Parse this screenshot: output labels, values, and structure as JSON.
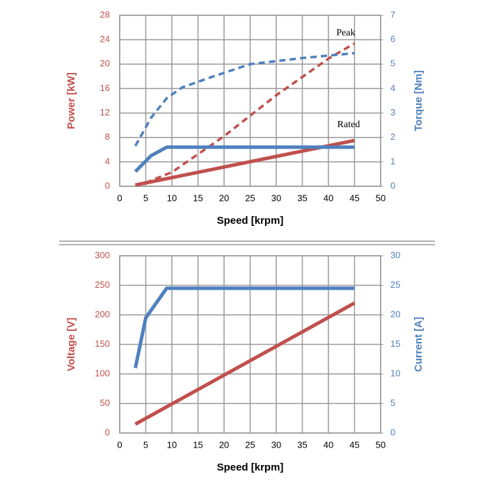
{
  "chart_data": [
    {
      "type": "line",
      "x_label": "Speed [krpm]",
      "y_label": "Power [kW]",
      "y2_label": "Torque [Nm]",
      "xlim": [
        0,
        50
      ],
      "xticks": [
        0,
        5,
        10,
        15,
        20,
        25,
        30,
        35,
        40,
        45,
        50
      ],
      "ylim": [
        0,
        28
      ],
      "yticks": [
        0,
        4,
        8,
        12,
        16,
        20,
        24,
        28
      ],
      "y2lim": [
        0,
        7
      ],
      "y2ticks": [
        0,
        1,
        2,
        3,
        4,
        5,
        6,
        7
      ],
      "grid": true,
      "y_color": "#c0504d",
      "y2_color": "#4f81bd",
      "annotations": [
        "Peak",
        "Rated"
      ],
      "series": [
        {
          "color": "#c0504d",
          "style": "dashed",
          "axis": "y",
          "x": [
            3,
            5,
            10,
            20,
            30,
            40,
            45
          ],
          "values": [
            0.2,
            0.6,
            2.3,
            8.2,
            14.9,
            20.9,
            23.4
          ]
        },
        {
          "color": "#c0504d",
          "style": "solid",
          "axis": "y",
          "x": [
            3,
            45
          ],
          "values": [
            0.2,
            7.5
          ]
        },
        {
          "color": "#4f81bd",
          "style": "dashed",
          "axis": "y2",
          "x": [
            3,
            6,
            9,
            12,
            18,
            25,
            35,
            45
          ],
          "values": [
            1.65,
            2.8,
            3.6,
            4.05,
            4.5,
            5.0,
            5.25,
            5.45
          ]
        },
        {
          "color": "#4f81bd",
          "style": "solid",
          "axis": "y2",
          "x": [
            3,
            6,
            9,
            45
          ],
          "values": [
            0.6,
            1.25,
            1.6,
            1.6
          ]
        }
      ]
    },
    {
      "type": "line",
      "x_label": "Speed [krpm]",
      "y_label": "Voltage [V]",
      "y2_label": "Current [A]",
      "xlim": [
        0,
        50
      ],
      "xticks": [
        0,
        5,
        10,
        15,
        20,
        25,
        30,
        35,
        40,
        45,
        50
      ],
      "ylim": [
        0,
        300
      ],
      "yticks": [
        0,
        50,
        100,
        150,
        200,
        250,
        300
      ],
      "y2lim": [
        0,
        30
      ],
      "y2ticks": [
        0,
        5,
        10,
        15,
        20,
        25,
        30
      ],
      "grid": true,
      "y_color": "#c0504d",
      "y2_color": "#4f81bd",
      "series": [
        {
          "color": "#c0504d",
          "style": "solid",
          "axis": "y",
          "x": [
            3,
            45
          ],
          "values": [
            15,
            220
          ]
        },
        {
          "color": "#4f81bd",
          "style": "solid",
          "axis": "y2",
          "x": [
            3,
            5,
            9,
            45
          ],
          "values": [
            11,
            19.5,
            24.5,
            24.5
          ]
        }
      ]
    }
  ]
}
